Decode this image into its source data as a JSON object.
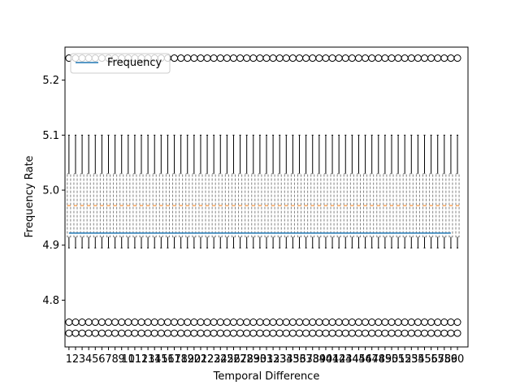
{
  "chart_data": {
    "type": "box",
    "xlabel": "Temporal Difference",
    "ylabel": "Frequency Rate",
    "x_tick_labels": [
      "1",
      "2",
      "3",
      "4",
      "5",
      "6",
      "7",
      "8",
      "9",
      "10",
      "11",
      "12",
      "13",
      "14",
      "15",
      "16",
      "17",
      "18",
      "19",
      "20",
      "21",
      "22",
      "23",
      "24",
      "25",
      "26",
      "27",
      "28",
      "29",
      "30",
      "31",
      "32",
      "33",
      "34",
      "35",
      "36",
      "37",
      "38",
      "39",
      "40",
      "41",
      "42",
      "43",
      "44",
      "45",
      "46",
      "47",
      "48",
      "49",
      "50",
      "51",
      "52",
      "53",
      "54",
      "55",
      "56",
      "57",
      "58",
      "59",
      "60"
    ],
    "y_ticks": [
      4.8,
      4.9,
      5.0,
      5.1,
      5.2
    ],
    "y_tick_labels": [
      "4.8",
      "4.9",
      "5.0",
      "5.1",
      "5.2"
    ],
    "ylim": [
      4.715,
      5.26
    ],
    "xlim": [
      -0.6,
      60.6
    ],
    "grid": false,
    "legend": {
      "position": "top-left",
      "entries": [
        "Frequency"
      ]
    },
    "box_stats": {
      "count": 60,
      "whisker_low": 4.895,
      "q1": 4.915,
      "median": 4.972,
      "q3": 5.03,
      "whisker_high": 5.1,
      "outliers": [
        4.74,
        4.76,
        5.24
      ]
    },
    "series": [
      {
        "name": "Frequency",
        "type": "line",
        "x": [
          0,
          58
        ],
        "values": [
          4.922,
          4.922
        ],
        "color": "#1f77b4"
      }
    ],
    "colors": {
      "median": "#ff7f0e",
      "box": "#808080",
      "whisker": "#000000",
      "line": "#1f77b4"
    }
  }
}
